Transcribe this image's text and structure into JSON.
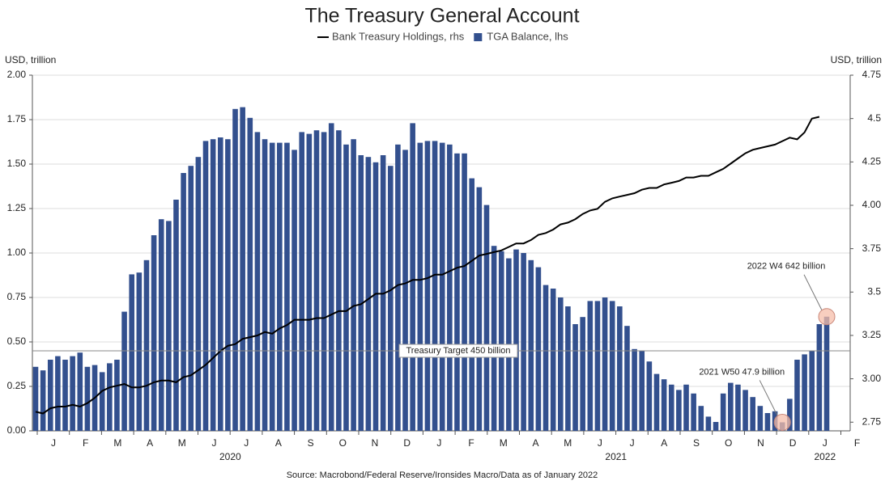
{
  "chart_data": {
    "type": "bar",
    "title": "The Treasury General Account",
    "ylabel": "USD, trillion",
    "y2label": "USD, trillion",
    "source": "Source: Macrobond/Federal Reserve/Ironsides Macro/Data as of January 2022",
    "month_labels": [
      "J",
      "F",
      "M",
      "A",
      "M",
      "J",
      "J",
      "A",
      "S",
      "O",
      "N",
      "D",
      "J",
      "F",
      "M",
      "A",
      "M",
      "J",
      "J",
      "A",
      "S",
      "O",
      "N",
      "D",
      "J",
      "F"
    ],
    "year_labels": [
      "2020",
      "2021",
      "2022"
    ],
    "ylim": [
      0,
      2
    ],
    "yticks": [
      {
        "value": 0,
        "label": "0.00"
      },
      0.25,
      {
        "value": 0.5,
        "label": "0.50"
      },
      0.75,
      {
        "value": 1,
        "label": "1.00"
      },
      1.25,
      {
        "value": 1.5,
        "label": "1.50"
      },
      1.75,
      {
        "value": 2,
        "label": "2.00"
      }
    ],
    "y2lim": [
      2.7,
      4.75
    ],
    "y2ticks": [
      2.75,
      {
        "value": 3,
        "label": "3.00"
      },
      3.25,
      3.5,
      3.75,
      {
        "value": 4,
        "label": "4.00"
      },
      4.25,
      4.5,
      4.75
    ],
    "grid": true,
    "reference_line": {
      "label": "Treasury Target 450 billion",
      "value": 0.45
    },
    "annotations": [
      {
        "text": "2021 W50 47.9 billion",
        "value": 0.0479
      },
      {
        "text": "2022 W4 642 billion",
        "value": 0.642
      }
    ],
    "series": [
      {
        "name": "Bank Treasury Holdings, rhs",
        "type": "line",
        "axis": "y2",
        "color": "#000000",
        "values": [
          2.81,
          2.8,
          2.83,
          2.84,
          2.84,
          2.85,
          2.84,
          2.86,
          2.89,
          2.93,
          2.95,
          2.96,
          2.97,
          2.95,
          2.95,
          2.96,
          2.98,
          2.99,
          2.99,
          2.98,
          3.01,
          3.02,
          3.05,
          3.08,
          3.12,
          3.16,
          3.19,
          3.2,
          3.23,
          3.24,
          3.25,
          3.27,
          3.26,
          3.29,
          3.31,
          3.34,
          3.34,
          3.34,
          3.35,
          3.35,
          3.37,
          3.39,
          3.39,
          3.42,
          3.43,
          3.46,
          3.49,
          3.49,
          3.51,
          3.54,
          3.55,
          3.57,
          3.57,
          3.58,
          3.6,
          3.6,
          3.62,
          3.64,
          3.65,
          3.68,
          3.71,
          3.72,
          3.73,
          3.74,
          3.76,
          3.78,
          3.78,
          3.8,
          3.83,
          3.84,
          3.86,
          3.89,
          3.9,
          3.92,
          3.95,
          3.97,
          3.98,
          4.02,
          4.04,
          4.05,
          4.06,
          4.07,
          4.09,
          4.1,
          4.1,
          4.12,
          4.13,
          4.14,
          4.16,
          4.16,
          4.17,
          4.17,
          4.19,
          4.21,
          4.24,
          4.27,
          4.3,
          4.32,
          4.33,
          4.34,
          4.35,
          4.37,
          4.39,
          4.38,
          4.42,
          4.5,
          4.51,
          null
        ]
      },
      {
        "name": "TGA Balance, lhs",
        "type": "bar",
        "color": "#33508e",
        "values": [
          0.36,
          0.34,
          0.4,
          0.42,
          0.4,
          0.42,
          0.44,
          0.36,
          0.37,
          0.33,
          0.38,
          0.4,
          0.67,
          0.88,
          0.89,
          0.96,
          1.1,
          1.19,
          1.18,
          1.3,
          1.45,
          1.49,
          1.54,
          1.63,
          1.64,
          1.65,
          1.64,
          1.81,
          1.82,
          1.76,
          1.68,
          1.64,
          1.62,
          1.62,
          1.62,
          1.58,
          1.68,
          1.67,
          1.69,
          1.68,
          1.73,
          1.69,
          1.61,
          1.64,
          1.55,
          1.54,
          1.51,
          1.55,
          1.49,
          1.61,
          1.58,
          1.73,
          1.62,
          1.63,
          1.63,
          1.62,
          1.61,
          1.56,
          1.56,
          1.42,
          1.37,
          1.27,
          1.04,
          1.01,
          0.97,
          1.02,
          1.0,
          0.96,
          0.92,
          0.82,
          0.8,
          0.75,
          0.7,
          0.6,
          0.64,
          0.73,
          0.73,
          0.75,
          0.73,
          0.7,
          0.59,
          0.46,
          0.45,
          0.39,
          0.32,
          0.29,
          0.26,
          0.23,
          0.26,
          0.21,
          0.14,
          0.08,
          0.05,
          0.21,
          0.27,
          0.26,
          0.23,
          0.19,
          0.14,
          0.1,
          0.11,
          0.0479,
          0.18,
          0.4,
          0.43,
          0.45,
          0.6,
          0.642
        ]
      }
    ]
  }
}
